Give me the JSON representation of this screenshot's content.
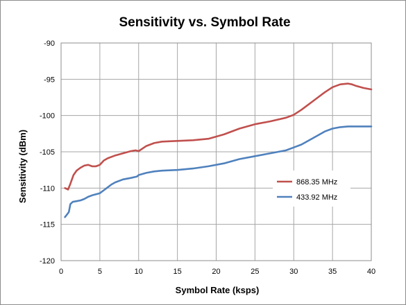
{
  "chart_data": {
    "type": "line",
    "title": "Sensitivity vs. Symbol Rate",
    "xlabel": "Symbol Rate (ksps)",
    "ylabel": "Sensitivity (dBm)",
    "xlim": [
      0,
      40
    ],
    "ylim": [
      -120,
      -90
    ],
    "xticks": [
      "0",
      "5",
      "10",
      "15",
      "20",
      "25",
      "30",
      "35",
      "40"
    ],
    "yticks": [
      "-90",
      "-95",
      "-100",
      "-105",
      "-110",
      "-115",
      "-120"
    ],
    "grid": true,
    "legend_position": "right",
    "series": [
      {
        "name": "868.35 MHz",
        "color": "#c0504d",
        "x": [
          0.5,
          0.9,
          1.2,
          1.6,
          2.0,
          2.5,
          3.0,
          3.5,
          4.0,
          4.5,
          5.0,
          5.5,
          6.0,
          7.0,
          8.0,
          9.0,
          9.6,
          10.0,
          11.0,
          12.0,
          13.0,
          15.0,
          17.0,
          19.0,
          21.0,
          23.0,
          25.0,
          27.0,
          29.0,
          30.0,
          31.0,
          32.0,
          33.0,
          34.0,
          35.0,
          36.0,
          37.0,
          37.5,
          38.0,
          39.0,
          40.0
        ],
        "y": [
          -110.0,
          -110.2,
          -109.4,
          -108.2,
          -107.6,
          -107.2,
          -106.9,
          -106.8,
          -107.0,
          -107.0,
          -106.8,
          -106.2,
          -105.9,
          -105.5,
          -105.2,
          -104.9,
          -104.8,
          -104.9,
          -104.2,
          -103.8,
          -103.6,
          -103.5,
          -103.4,
          -103.2,
          -102.6,
          -101.8,
          -101.2,
          -100.8,
          -100.3,
          -99.9,
          -99.2,
          -98.4,
          -97.6,
          -96.8,
          -96.1,
          -95.7,
          -95.6,
          -95.7,
          -95.9,
          -96.2,
          -96.4
        ]
      },
      {
        "name": "433.92 MHz",
        "color": "#4f81bd",
        "x": [
          0.5,
          0.8,
          1.0,
          1.2,
          1.5,
          2.0,
          2.5,
          3.0,
          3.5,
          4.0,
          5.0,
          5.5,
          6.0,
          6.5,
          7.0,
          8.0,
          9.0,
          9.8,
          10.0,
          11.0,
          12.0,
          13.0,
          15.0,
          17.0,
          19.0,
          21.0,
          23.0,
          25.0,
          27.0,
          29.0,
          30.0,
          31.0,
          32.0,
          33.0,
          34.0,
          35.0,
          36.0,
          37.0,
          38.0,
          39.0,
          40.0
        ],
        "y": [
          -114.0,
          -113.6,
          -113.3,
          -112.2,
          -111.9,
          -111.8,
          -111.7,
          -111.5,
          -111.2,
          -111.0,
          -110.7,
          -110.3,
          -109.9,
          -109.5,
          -109.2,
          -108.8,
          -108.6,
          -108.4,
          -108.2,
          -107.9,
          -107.7,
          -107.6,
          -107.5,
          -107.3,
          -107.0,
          -106.6,
          -106.0,
          -105.6,
          -105.2,
          -104.8,
          -104.4,
          -104.0,
          -103.4,
          -102.8,
          -102.2,
          -101.8,
          -101.6,
          -101.5,
          -101.5,
          -101.5,
          -101.5
        ]
      }
    ]
  }
}
